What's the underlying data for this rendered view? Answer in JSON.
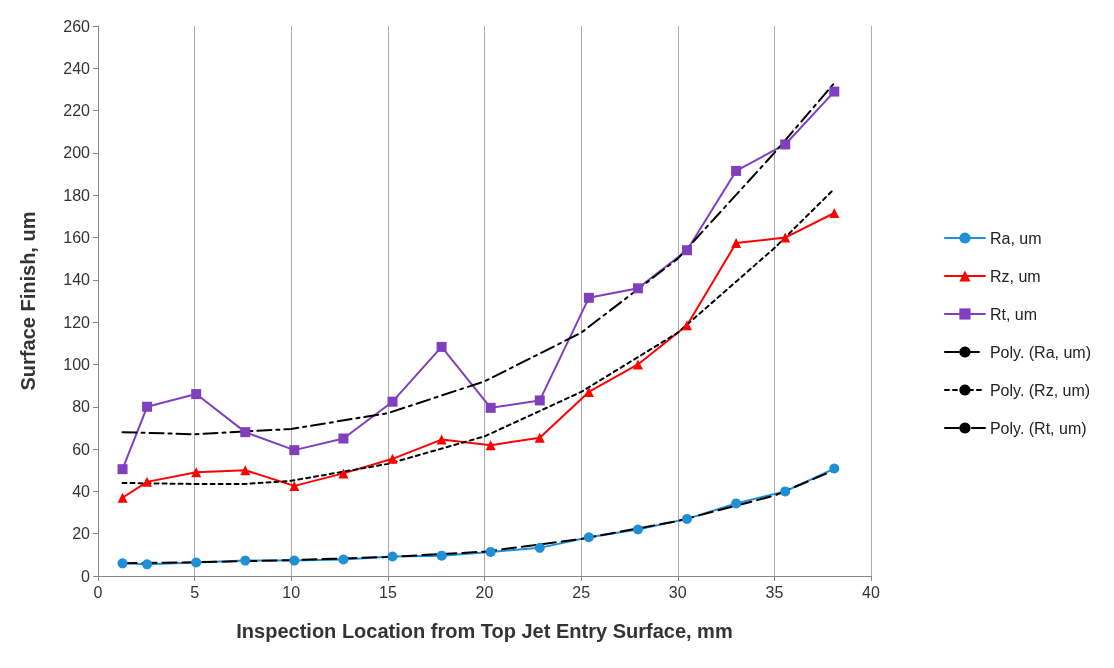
{
  "chart_data": {
    "type": "line",
    "xlabel": "Inspection Location from Top Jet Entry Surface, mm",
    "ylabel": "Surface Finish, um",
    "x": [
      1.27,
      2.54,
      5.08,
      7.62,
      10.16,
      12.7,
      15.24,
      17.78,
      20.32,
      22.86,
      25.4,
      27.94,
      30.48,
      33.02,
      35.56,
      38.1
    ],
    "xlim": [
      0,
      40
    ],
    "xticks": [
      0,
      5,
      10,
      15,
      20,
      25,
      30,
      35,
      40
    ],
    "ylim": [
      0,
      260
    ],
    "yticks": [
      0,
      20,
      40,
      60,
      80,
      100,
      120,
      140,
      160,
      180,
      200,
      220,
      240,
      260
    ],
    "grid": "x",
    "legend": "right",
    "series": [
      {
        "name": "Ra, um",
        "color": "#1f8fd6",
        "marker": "circle",
        "line_style": "solid",
        "values": [
          6,
          5.5,
          6.4,
          7.3,
          7.3,
          7.8,
          9.2,
          9.6,
          11.4,
          13.3,
          18.3,
          22,
          27,
          34.3,
          40,
          50.8
        ]
      },
      {
        "name": "Rz, um",
        "color": "#ff0000",
        "marker": "triangle",
        "line_style": "solid",
        "values": [
          37,
          44.5,
          49,
          50,
          42.6,
          48.5,
          55.4,
          64.5,
          61.8,
          65.4,
          87,
          100,
          118.5,
          157.4,
          160,
          171.6
        ]
      },
      {
        "name": "Rt, um",
        "color": "#7f3fbf",
        "marker": "square",
        "line_style": "solid",
        "values": [
          50.5,
          80,
          86,
          68,
          59.5,
          65,
          82.4,
          108.3,
          79.5,
          83,
          131.5,
          136,
          154,
          191.5,
          204,
          229
        ]
      },
      {
        "name": "Poly. (Ra, um)",
        "color": "#000000",
        "marker": "none",
        "line_style": "dashed",
        "x": [
          1.27,
          5,
          10,
          15,
          20,
          25,
          30,
          35,
          38.1
        ],
        "values": [
          6,
          6.5,
          7.5,
          9,
          11.5,
          17.5,
          26,
          38,
          50
        ]
      },
      {
        "name": "Poly. (Rz, um)",
        "color": "#000000",
        "marker": "none",
        "line_style": "dotted",
        "x": [
          1.27,
          5,
          7.6,
          10,
          15,
          20,
          25,
          30,
          35,
          38.1
        ],
        "values": [
          44,
          43.5,
          43.5,
          45,
          53,
          66,
          87,
          115,
          155,
          183
        ]
      },
      {
        "name": "Poly. (Rt, um)",
        "color": "#000000",
        "marker": "none",
        "line_style": "dashdot",
        "x": [
          1.27,
          5,
          10,
          15,
          20,
          25,
          30,
          35,
          38.1
        ],
        "values": [
          68,
          67,
          69.5,
          77,
          92,
          115,
          150,
          200,
          233
        ]
      }
    ]
  }
}
